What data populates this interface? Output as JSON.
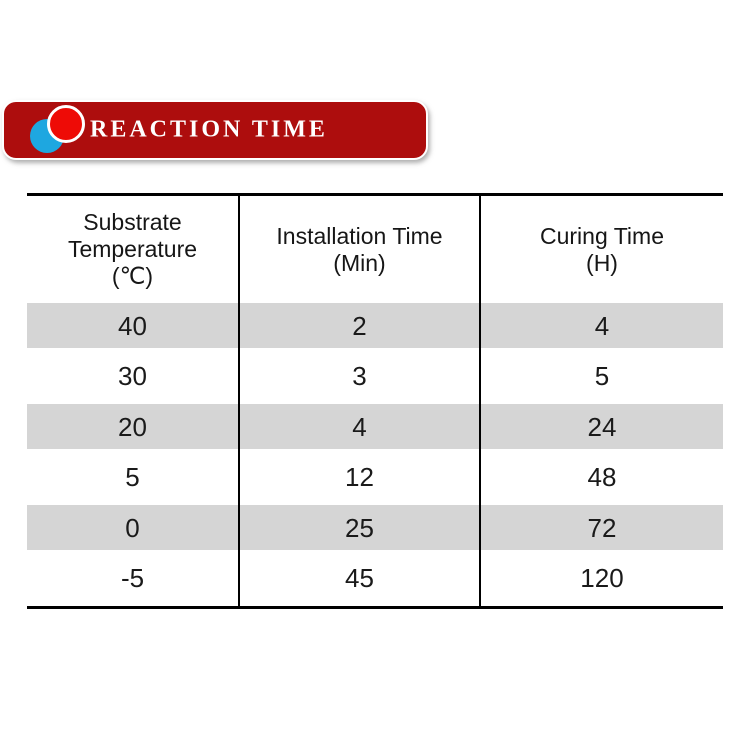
{
  "page": {
    "background": "#ffffff"
  },
  "banner": {
    "title": "REACTION TIME",
    "bg_color": "#ad0d0d",
    "text_color": "#ffffff",
    "icon": {
      "name": "overlapping-circles-icon",
      "blue_color": "#1ea7e0",
      "red_color": "#ee0b06"
    }
  },
  "table": {
    "stripe_color": "#d5d5d5",
    "border_color": "#000000",
    "columns": [
      {
        "id": "substrate-temperature",
        "title_lines": [
          "Substrate",
          "Temperature",
          "(℃)"
        ]
      },
      {
        "id": "installation-time",
        "title_lines": [
          "Installation Time",
          "(Min)"
        ]
      },
      {
        "id": "curing-time",
        "title_lines": [
          "Curing Time",
          "(H)"
        ]
      }
    ],
    "rows": [
      [
        "40",
        "2",
        "4"
      ],
      [
        "30",
        "3",
        "5"
      ],
      [
        "20",
        "4",
        "24"
      ],
      [
        "5",
        "12",
        "48"
      ],
      [
        "0",
        "25",
        "72"
      ],
      [
        "-5",
        "45",
        "120"
      ]
    ]
  },
  "chart_data": {
    "type": "table",
    "title": "REACTION TIME",
    "columns": [
      "Substrate Temperature (℃)",
      "Installation Time (Min)",
      "Curing Time (H)"
    ],
    "rows": [
      [
        40,
        2,
        4
      ],
      [
        30,
        3,
        5
      ],
      [
        20,
        4,
        24
      ],
      [
        5,
        12,
        48
      ],
      [
        0,
        25,
        72
      ],
      [
        -5,
        45,
        120
      ]
    ]
  }
}
